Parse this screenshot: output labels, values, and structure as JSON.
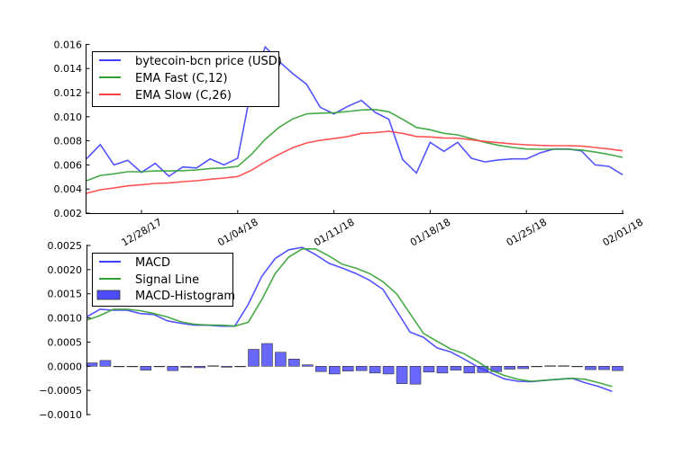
{
  "chart_data": [
    {
      "type": "line",
      "title": "",
      "xlabel": "",
      "ylabel": "",
      "x_dates_start": "12/24/17",
      "x_tick_labels": [
        "12/28/17",
        "01/04/18",
        "01/11/18",
        "01/18/18",
        "01/25/18",
        "02/01/18"
      ],
      "x_tick_index": [
        4,
        11,
        18,
        25,
        32,
        39
      ],
      "ylim": [
        0.002,
        0.016
      ],
      "y_ticks": [
        "0.002",
        "0.004",
        "0.006",
        "0.008",
        "0.010",
        "0.012",
        "0.014",
        "0.016"
      ],
      "legend_position": "top-left",
      "series": [
        {
          "name": "bytecoin-bcn price (USD)",
          "color": "#4040ff",
          "values": [
            0.0065,
            0.00769,
            0.006,
            0.00638,
            0.00538,
            0.00613,
            0.00506,
            0.00583,
            0.00575,
            0.0065,
            0.006,
            0.00655,
            0.0124,
            0.0158,
            0.0146,
            0.01359,
            0.0127,
            0.01078,
            0.01023,
            0.01086,
            0.01135,
            0.01036,
            0.00978,
            0.00645,
            0.00533,
            0.00787,
            0.00713,
            0.00787,
            0.00655,
            0.00625,
            0.00642,
            0.0065,
            0.0065,
            0.007,
            0.00732,
            0.00732,
            0.00717,
            0.006,
            0.00588,
            0.00519
          ]
        },
        {
          "name": "EMA Fast (C,12)",
          "color": "#33a033",
          "values": [
            0.00469,
            0.00513,
            0.00526,
            0.00543,
            0.00543,
            0.0055,
            0.0055,
            0.00552,
            0.00558,
            0.0057,
            0.00575,
            0.00588,
            0.00687,
            0.00812,
            0.00911,
            0.00981,
            0.01023,
            0.0103,
            0.01033,
            0.01043,
            0.01056,
            0.0106,
            0.01041,
            0.00978,
            0.00911,
            0.00892,
            0.00862,
            0.00849,
            0.00819,
            0.00787,
            0.00762,
            0.00745,
            0.00732,
            0.0073,
            0.0073,
            0.0073,
            0.00724,
            0.00707,
            0.00687,
            0.00663
          ]
        },
        {
          "name": "EMA Slow (C,26)",
          "color": "#ff4040",
          "values": [
            0.00364,
            0.00394,
            0.00409,
            0.00426,
            0.00436,
            0.00446,
            0.00451,
            0.00461,
            0.00469,
            0.00481,
            0.00491,
            0.00504,
            0.00556,
            0.00625,
            0.00687,
            0.00742,
            0.00782,
            0.00804,
            0.00819,
            0.00836,
            0.00862,
            0.00869,
            0.00879,
            0.00862,
            0.00836,
            0.00832,
            0.00824,
            0.00822,
            0.00809,
            0.00795,
            0.00784,
            0.00774,
            0.00767,
            0.00762,
            0.0076,
            0.0076,
            0.00757,
            0.00745,
            0.00732,
            0.00717
          ]
        }
      ]
    },
    {
      "type": "line",
      "title": "",
      "xlabel": "",
      "ylabel": "",
      "ylim": [
        -0.001,
        0.0025
      ],
      "y_ticks": [
        "−0.0010",
        "−0.0005",
        "0.0000",
        "0.0005",
        "0.0010",
        "0.0015",
        "0.0020",
        "0.0025"
      ],
      "legend_position": "top-left",
      "series": [
        {
          "name": "MACD",
          "kind": "line",
          "color": "#4040ff",
          "values": [
            0.00102,
            0.00118,
            0.00116,
            0.00116,
            0.00109,
            0.00107,
            0.00094,
            0.00089,
            0.00085,
            0.00085,
            0.00083,
            0.00083,
            0.00128,
            0.00186,
            0.00223,
            0.00241,
            0.00246,
            0.00231,
            0.00213,
            0.00203,
            0.00192,
            0.00178,
            0.00159,
            0.00115,
            0.00071,
            0.0006,
            0.00038,
            0.0003,
            0.00015,
            -1e-05,
            -0.00014,
            -0.00026,
            -0.00031,
            -0.00032,
            -0.00029,
            -0.00027,
            -0.00025,
            -0.00034,
            -0.00042,
            -0.00052
          ]
        },
        {
          "name": "Signal Line",
          "kind": "line",
          "color": "#33a033",
          "values": [
            0.00095,
            0.00105,
            0.00118,
            0.00118,
            0.00115,
            0.00109,
            0.00102,
            0.00092,
            0.00087,
            0.00085,
            0.00085,
            0.00083,
            0.00091,
            0.00138,
            0.00192,
            0.00226,
            0.00243,
            0.00243,
            0.00228,
            0.00211,
            0.00203,
            0.00192,
            0.00175,
            0.0015,
            0.00109,
            0.00068,
            0.00052,
            0.00036,
            0.00026,
            0.0001,
            -8e-05,
            -0.00019,
            -0.00027,
            -0.00031,
            -0.00029,
            -0.00027,
            -0.00025,
            -0.00027,
            -0.00034,
            -0.00042
          ]
        },
        {
          "name": "MACD-Histogram",
          "kind": "bar",
          "color": "#4d4dff",
          "values": [
            7e-05,
            0.00012,
            -1e-05,
            0,
            -8e-05,
            -1e-05,
            -9e-05,
            -2e-05,
            -3e-05,
            1e-05,
            -2e-05,
            0,
            0.00035,
            0.00047,
            0.00029,
            0.00015,
            3e-05,
            -0.00011,
            -0.00016,
            -0.0001,
            -9e-05,
            -0.00014,
            -0.00016,
            -0.00036,
            -0.00037,
            -0.00012,
            -0.00014,
            -8e-05,
            -0.00014,
            -0.00013,
            -0.00011,
            -6e-05,
            -5e-05,
            0,
            1e-05,
            1e-05,
            0,
            -7e-05,
            -7e-05,
            -9e-05
          ]
        }
      ]
    }
  ]
}
